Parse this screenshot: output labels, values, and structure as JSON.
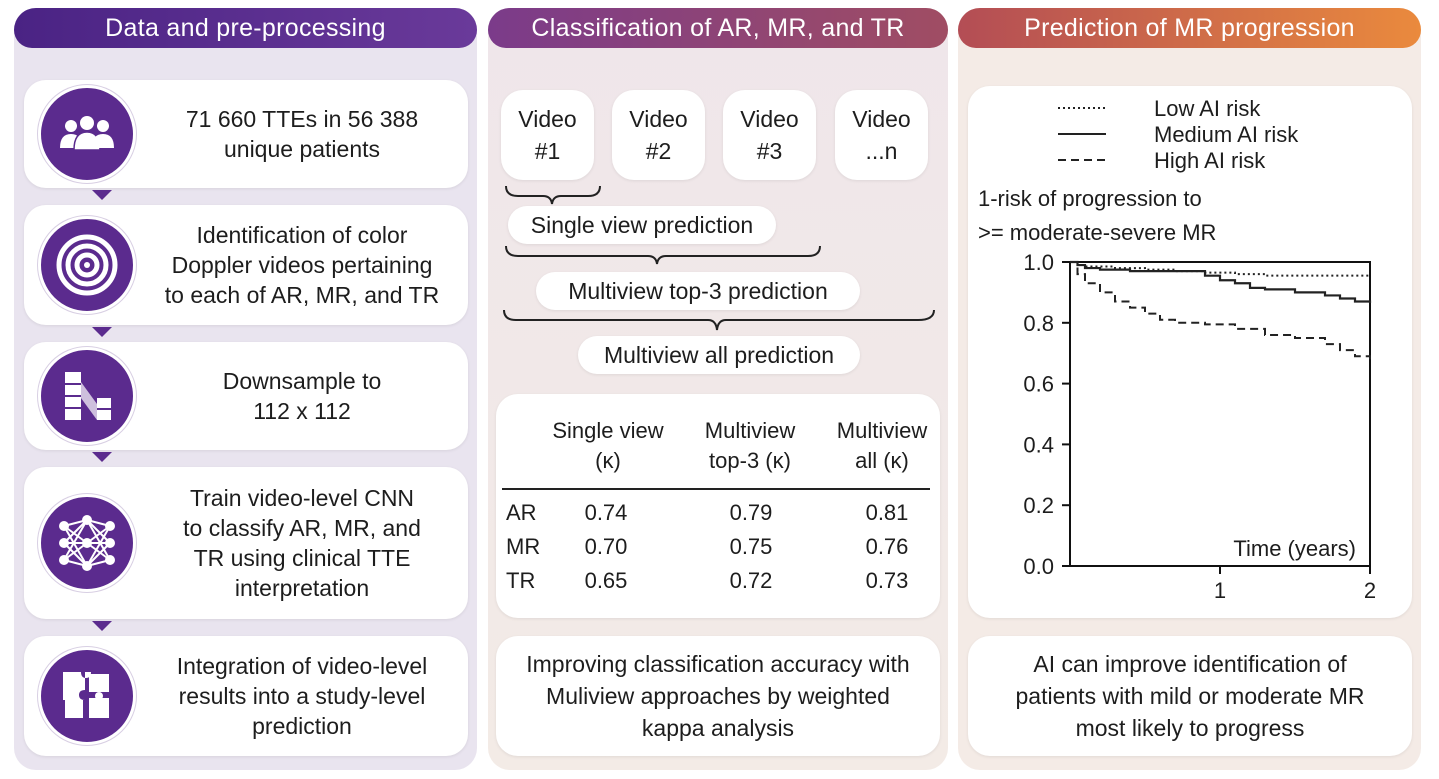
{
  "columns": {
    "data": {
      "title": "Data and pre-processing",
      "steps": [
        {
          "icon": "people-icon",
          "text": "71 660 TTEs in 56 388\nunique patients"
        },
        {
          "icon": "concentric-rings-icon",
          "text": "Identification of color\nDoppler videos pertaining\nto each of AR, MR, and TR"
        },
        {
          "icon": "downsample-icon",
          "text": "Downsample to\n112 x 112"
        },
        {
          "icon": "neural-network-icon",
          "text": "Train video-level CNN\nto classify AR, MR, and\nTR using clinical TTE\ninterpretation"
        },
        {
          "icon": "puzzle-icon",
          "text": "Integration of video-level\nresults into a study-level\nprediction"
        }
      ]
    },
    "classification": {
      "title": "Classification of AR, MR, and TR",
      "videos": [
        {
          "line1": "Video",
          "line2": "#1"
        },
        {
          "line1": "Video",
          "line2": "#2"
        },
        {
          "line1": "Video",
          "line2": "#3"
        },
        {
          "line1": "Video",
          "line2": "...n"
        }
      ],
      "single_view": "Single view prediction",
      "multiview_top3": "Multiview top-3 prediction",
      "multiview_all": "Multiview all prediction",
      "table": {
        "headers": [
          "Single view\n(κ)",
          "Multiview\ntop-3 (κ)",
          "Multiview\nall (κ)"
        ],
        "rows": [
          {
            "label": "AR",
            "values": [
              "0.74",
              "0.79",
              "0.81"
            ]
          },
          {
            "label": "MR",
            "values": [
              "0.70",
              "0.75",
              "0.76"
            ]
          },
          {
            "label": "TR",
            "values": [
              "0.65",
              "0.72",
              "0.73"
            ]
          }
        ]
      },
      "footer": "Improving classification accuracy with\nMuliview approaches by weighted\nkappa analysis"
    },
    "prediction": {
      "title": "Prediction of MR progression",
      "footer": "AI can improve identification of\npatients with mild or moderate MR\nmost likely to progress"
    }
  },
  "chart_data": {
    "type": "line",
    "ylabel_line1": "1-risk of progression to",
    "ylabel_line2": ">= moderate-severe MR",
    "xlabel": "Time (years)",
    "xlim": [
      0,
      2
    ],
    "ylim": [
      0,
      1
    ],
    "yticks": [
      "0.0",
      "0.2",
      "0.4",
      "0.6",
      "0.8",
      "1.0"
    ],
    "xticks": [
      "1",
      "2"
    ],
    "legend_position": "top",
    "series": [
      {
        "name": "Low AI risk",
        "style": "dotted",
        "x": [
          0,
          0.05,
          0.1,
          0.3,
          0.5,
          0.7,
          0.9,
          1.1,
          1.3,
          1.5,
          1.7,
          1.9,
          2.0
        ],
        "y": [
          1.0,
          0.99,
          0.985,
          0.98,
          0.975,
          0.97,
          0.965,
          0.96,
          0.955,
          0.955,
          0.955,
          0.955,
          0.955
        ]
      },
      {
        "name": "Medium AI risk",
        "style": "solid",
        "x": [
          0,
          0.05,
          0.1,
          0.2,
          0.4,
          0.6,
          0.8,
          0.9,
          1.0,
          1.1,
          1.2,
          1.3,
          1.5,
          1.7,
          1.8,
          1.9,
          2.0
        ],
        "y": [
          1.0,
          0.99,
          0.98,
          0.975,
          0.97,
          0.97,
          0.97,
          0.955,
          0.94,
          0.93,
          0.915,
          0.91,
          0.9,
          0.89,
          0.88,
          0.87,
          0.865
        ]
      },
      {
        "name": "High AI risk",
        "style": "dashed",
        "x": [
          0,
          0.05,
          0.1,
          0.2,
          0.3,
          0.4,
          0.5,
          0.6,
          0.7,
          0.9,
          1.1,
          1.3,
          1.5,
          1.7,
          1.8,
          1.9,
          2.0
        ],
        "y": [
          1.0,
          0.96,
          0.93,
          0.9,
          0.87,
          0.85,
          0.83,
          0.81,
          0.8,
          0.795,
          0.78,
          0.76,
          0.75,
          0.73,
          0.71,
          0.69,
          0.68
        ]
      }
    ]
  }
}
